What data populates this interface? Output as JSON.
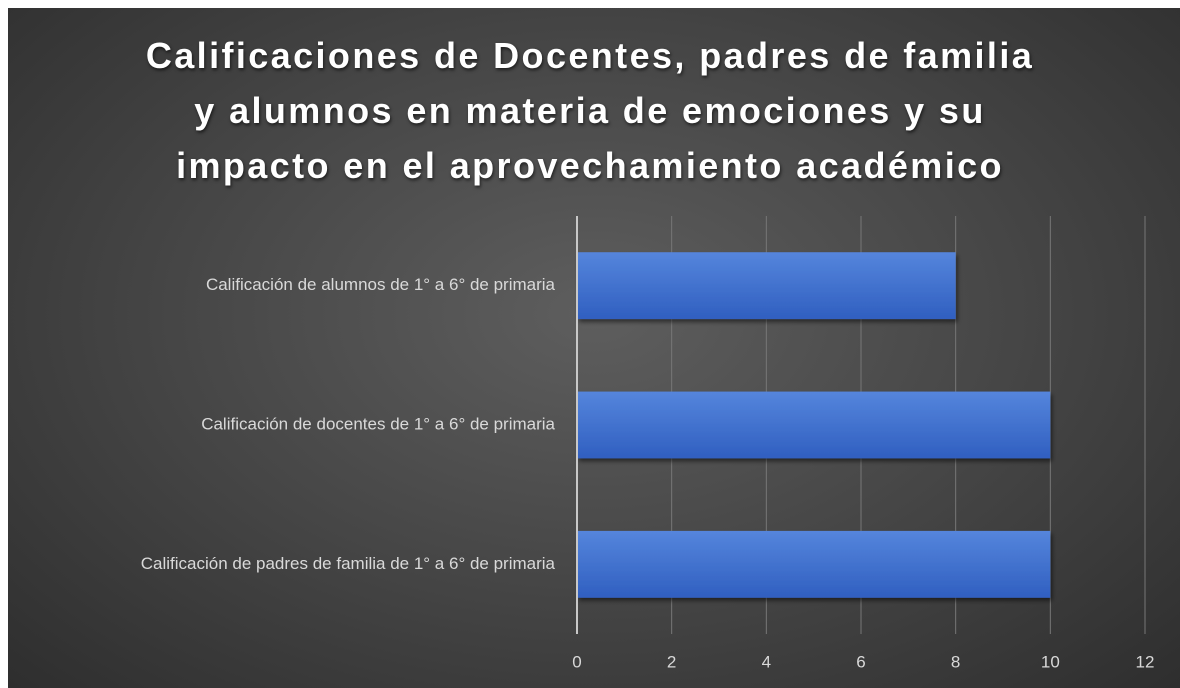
{
  "chart_data": {
    "type": "bar",
    "orientation": "horizontal",
    "title": "Calificaciones de Docentes, padres de familia y alumnos en materia de emociones y su impacto en el aprovechamiento académico",
    "categories": [
      "Calificación de alumnos de 1° a 6° de primaria",
      "Calificación de docentes de 1° a 6° de primaria",
      "Calificación de padres de familia de 1° a 6° de primaria"
    ],
    "values": [
      8,
      10,
      10
    ],
    "color": "#4a78d2",
    "xlim": [
      0,
      12
    ],
    "xticks": [
      0,
      2,
      4,
      6,
      8,
      10,
      12
    ],
    "grid": true
  }
}
